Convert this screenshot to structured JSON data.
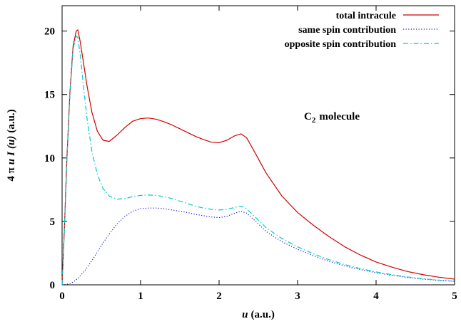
{
  "chart_data": {
    "type": "line",
    "xlabel": {
      "var": "u",
      "unit": "(a.u.)"
    },
    "ylabel": {
      "prefix": "4 π",
      "var1": "u",
      "func": "I",
      "arg": "(u)",
      "unit": "(a.u.)"
    },
    "xlim": [
      0,
      5
    ],
    "ylim": [
      0,
      22
    ],
    "xticks": [
      0,
      1,
      2,
      3,
      4,
      5
    ],
    "yticks": [
      0,
      5,
      10,
      15,
      20
    ],
    "grid": false,
    "legend_position": "top-right",
    "annotation": {
      "main": "C",
      "sub": "2",
      "rest": "molecule"
    },
    "series": [
      {
        "name": "total intracule",
        "color": "#d10000",
        "dash": "solid",
        "x": [
          0,
          0.03,
          0.06,
          0.1,
          0.14,
          0.18,
          0.2,
          0.23,
          0.27,
          0.32,
          0.38,
          0.45,
          0.52,
          0.6,
          0.7,
          0.8,
          0.9,
          1.0,
          1.1,
          1.2,
          1.3,
          1.4,
          1.5,
          1.6,
          1.7,
          1.8,
          1.9,
          2.0,
          2.1,
          2.2,
          2.28,
          2.35,
          2.45,
          2.6,
          2.8,
          3.0,
          3.2,
          3.4,
          3.6,
          3.8,
          4.0,
          4.2,
          4.4,
          4.6,
          4.8,
          5.0
        ],
        "y": [
          0,
          4.5,
          9.8,
          15.2,
          18.8,
          20.0,
          20.1,
          19.2,
          17.6,
          15.6,
          13.6,
          12.1,
          11.4,
          11.3,
          11.8,
          12.4,
          12.9,
          13.1,
          13.15,
          13.05,
          12.85,
          12.6,
          12.3,
          12.0,
          11.7,
          11.45,
          11.25,
          11.2,
          11.4,
          11.75,
          11.9,
          11.6,
          10.5,
          8.8,
          7.0,
          5.7,
          4.7,
          3.8,
          3.0,
          2.35,
          1.8,
          1.4,
          1.05,
          0.8,
          0.6,
          0.45
        ]
      },
      {
        "name": "same spin contribution",
        "color": "#1a1acc",
        "dash": "dotted",
        "x": [
          0,
          0.05,
          0.1,
          0.15,
          0.2,
          0.3,
          0.4,
          0.5,
          0.6,
          0.7,
          0.8,
          0.9,
          1.0,
          1.1,
          1.2,
          1.3,
          1.4,
          1.5,
          1.6,
          1.7,
          1.8,
          1.9,
          2.0,
          2.1,
          2.2,
          2.28,
          2.35,
          2.45,
          2.6,
          2.8,
          3.0,
          3.2,
          3.4,
          3.6,
          3.8,
          4.0,
          4.2,
          4.4,
          4.6,
          4.8,
          5.0
        ],
        "y": [
          0,
          0.03,
          0.1,
          0.25,
          0.5,
          1.2,
          2.1,
          3.1,
          4.0,
          4.8,
          5.4,
          5.8,
          6.0,
          6.05,
          6.05,
          6.0,
          5.9,
          5.8,
          5.7,
          5.55,
          5.45,
          5.35,
          5.3,
          5.4,
          5.65,
          5.8,
          5.65,
          5.1,
          4.2,
          3.4,
          2.8,
          2.3,
          1.85,
          1.5,
          1.2,
          0.95,
          0.75,
          0.58,
          0.45,
          0.35,
          0.28
        ]
      },
      {
        "name": "opposite spin contribution",
        "color": "#00cccc",
        "dash": "dashdot",
        "x": [
          0,
          0.03,
          0.06,
          0.1,
          0.14,
          0.18,
          0.2,
          0.23,
          0.27,
          0.32,
          0.38,
          0.45,
          0.52,
          0.6,
          0.7,
          0.8,
          0.9,
          1.0,
          1.1,
          1.2,
          1.3,
          1.4,
          1.5,
          1.6,
          1.7,
          1.8,
          1.9,
          2.0,
          2.1,
          2.2,
          2.28,
          2.35,
          2.45,
          2.6,
          2.8,
          3.0,
          3.2,
          3.4,
          3.6,
          3.8,
          4.0,
          4.2,
          4.4,
          4.6,
          4.8,
          5.0
        ],
        "y": [
          0,
          4.4,
          9.6,
          15.0,
          18.6,
          19.6,
          19.5,
          18.2,
          15.8,
          13.0,
          10.5,
          8.7,
          7.6,
          7.0,
          6.75,
          6.8,
          6.95,
          7.05,
          7.08,
          7.05,
          6.95,
          6.8,
          6.6,
          6.4,
          6.2,
          6.05,
          5.95,
          5.9,
          5.95,
          6.1,
          6.2,
          6.0,
          5.4,
          4.5,
          3.65,
          3.0,
          2.45,
          1.98,
          1.6,
          1.28,
          1.02,
          0.8,
          0.62,
          0.48,
          0.37,
          0.28
        ]
      }
    ]
  }
}
